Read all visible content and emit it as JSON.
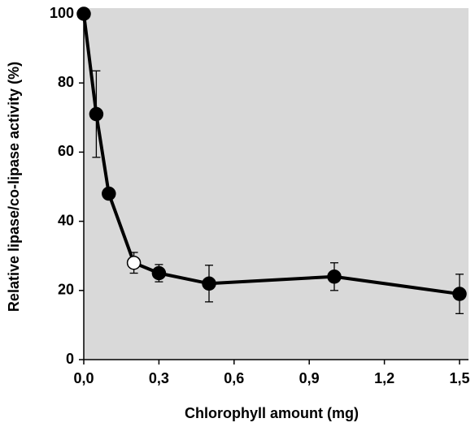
{
  "chart_data": {
    "type": "line",
    "xlabel": "Chlorophyll amount (mg)",
    "ylabel": "Relative lipase/co-lipase activity (%)",
    "x": [
      0,
      0.05,
      0.1,
      0.2,
      0.3,
      0.5,
      1.0,
      1.5
    ],
    "series": [
      {
        "color": "#000000",
        "values": [
          100,
          71,
          48,
          28,
          25,
          22,
          24,
          19
        ],
        "errors": [
          null,
          12.5,
          null,
          3,
          2.5,
          5.3,
          4,
          5.7
        ],
        "marker_colors": [
          "#000000",
          "#000000",
          "#000000",
          "#ffffff",
          "#000000",
          "#000000",
          "#000000",
          "#000000"
        ]
      }
    ],
    "xlim": [
      0,
      1.5
    ],
    "ylim": [
      0,
      100
    ],
    "xticks": [
      {
        "value": 0,
        "label": "0,0"
      },
      {
        "value": 0.3,
        "label": "0,3"
      },
      {
        "value": 0.6,
        "label": "0,6"
      },
      {
        "value": 0.9,
        "label": "0,9"
      },
      {
        "value": 1.2,
        "label": "1,2"
      },
      {
        "value": 1.5,
        "label": "1,5"
      }
    ],
    "yticks": [
      0,
      20,
      40,
      60,
      80,
      100
    ],
    "background": "#d9d9d9"
  }
}
